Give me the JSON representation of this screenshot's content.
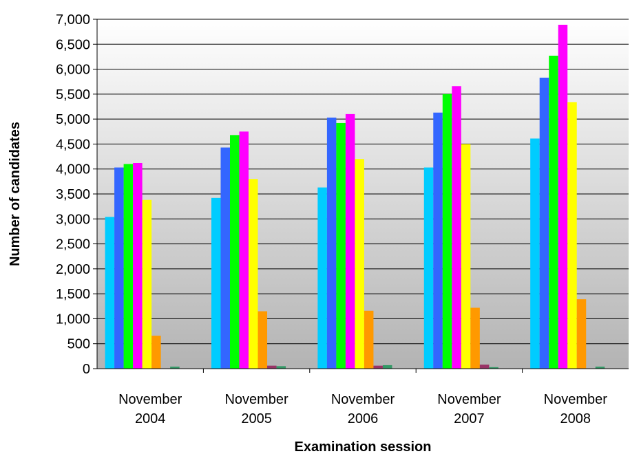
{
  "chart_data": {
    "type": "bar",
    "title": "",
    "xlabel": "Examination session",
    "ylabel": "Number of candidates",
    "categories": [
      [
        "November",
        "2004"
      ],
      [
        "November",
        "2005"
      ],
      [
        "November",
        "2006"
      ],
      [
        "November",
        "2007"
      ],
      [
        "November",
        "2008"
      ]
    ],
    "ylim": [
      0,
      7000
    ],
    "ytick_step": 500,
    "ytick_labels": [
      "0",
      "500",
      "1,000",
      "1,500",
      "2,000",
      "2,500",
      "3,000",
      "3,500",
      "4,000",
      "4,500",
      "5,000",
      "5,500",
      "6,000",
      "6,500",
      "7,000"
    ],
    "grid": true,
    "legend": "none",
    "series": [
      {
        "color": "#00ccff",
        "values": [
          3040,
          3420,
          3630,
          4030,
          4610
        ]
      },
      {
        "color": "#3366ff",
        "values": [
          4030,
          4430,
          5030,
          5130,
          5830
        ]
      },
      {
        "color": "#00ff00",
        "values": [
          4100,
          4680,
          4920,
          5500,
          6270
        ]
      },
      {
        "color": "#ff00ff",
        "values": [
          4120,
          4750,
          5100,
          5660,
          6890
        ]
      },
      {
        "color": "#ffff00",
        "values": [
          3380,
          3800,
          4200,
          4500,
          5340
        ]
      },
      {
        "color": "#ff9900",
        "values": [
          660,
          1150,
          1160,
          1220,
          1390
        ]
      },
      {
        "color": "#993366",
        "values": [
          0,
          60,
          60,
          80,
          0
        ]
      },
      {
        "color": "#339966",
        "values": [
          40,
          50,
          70,
          30,
          40
        ]
      }
    ]
  }
}
